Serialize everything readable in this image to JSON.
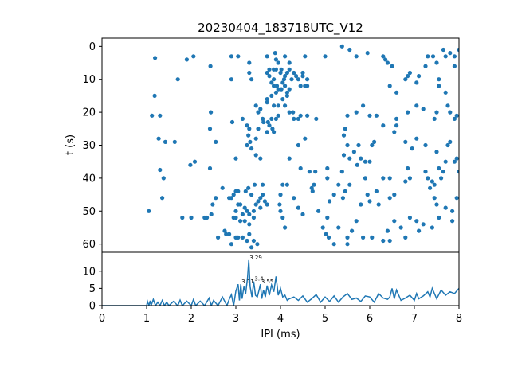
{
  "chart_data": [
    {
      "type": "scatter",
      "title": "20230404_183718UTC_V12",
      "xlabel": "",
      "ylabel": "t (s)",
      "xlim": [
        0,
        8
      ],
      "ylim": [
        62.5,
        -2.5
      ],
      "y_ticks": [
        0,
        10,
        20,
        30,
        40,
        50,
        60
      ],
      "marker_color": "#1f77b4",
      "points": [
        [
          1.19,
          3.5
        ],
        [
          1.18,
          15
        ],
        [
          1.12,
          21
        ],
        [
          1.3,
          21
        ],
        [
          1.42,
          29
        ],
        [
          1.27,
          28
        ],
        [
          1.3,
          37.5
        ],
        [
          1.38,
          40
        ],
        [
          1.35,
          46
        ],
        [
          1.05,
          50
        ],
        [
          1.63,
          29
        ],
        [
          1.7,
          10
        ],
        [
          1.9,
          4
        ],
        [
          2.05,
          3
        ],
        [
          1.98,
          36
        ],
        [
          2.08,
          35
        ],
        [
          2.43,
          6
        ],
        [
          2.44,
          20
        ],
        [
          2.42,
          25
        ],
        [
          2.55,
          29
        ],
        [
          2.42,
          37
        ],
        [
          2.9,
          10
        ],
        [
          2.9,
          3
        ],
        [
          2.55,
          46
        ],
        [
          2.48,
          48
        ],
        [
          2.45,
          51
        ],
        [
          2.35,
          52
        ],
        [
          2.3,
          52
        ],
        [
          2.0,
          52
        ],
        [
          1.8,
          52
        ],
        [
          2.7,
          43
        ],
        [
          2.6,
          58
        ],
        [
          2.75,
          56
        ],
        [
          2.78,
          57
        ],
        [
          2.85,
          57
        ],
        [
          2.9,
          60
        ],
        [
          3.0,
          58
        ],
        [
          3.05,
          58
        ],
        [
          3.15,
          58
        ],
        [
          3.25,
          59
        ],
        [
          3.3,
          57
        ],
        [
          3.4,
          59
        ],
        [
          3.48,
          60
        ],
        [
          3.35,
          61
        ],
        [
          3.3,
          54
        ],
        [
          3.2,
          53
        ],
        [
          3.1,
          53
        ],
        [
          3.0,
          52
        ],
        [
          2.95,
          52
        ],
        [
          3.0,
          50
        ],
        [
          3.05,
          48
        ],
        [
          3.1,
          48
        ],
        [
          3.2,
          49
        ],
        [
          3.25,
          50
        ],
        [
          3.3,
          51
        ],
        [
          3.4,
          52
        ],
        [
          3.45,
          48
        ],
        [
          3.5,
          47
        ],
        [
          3.55,
          46
        ],
        [
          3.6,
          45
        ],
        [
          3.65,
          47
        ],
        [
          3.7,
          48
        ],
        [
          3.55,
          49
        ],
        [
          3.4,
          50
        ],
        [
          3.15,
          51
        ],
        [
          3.05,
          44
        ],
        [
          3.0,
          44
        ],
        [
          2.95,
          45
        ],
        [
          2.9,
          46
        ],
        [
          2.85,
          46
        ],
        [
          3.35,
          45
        ],
        [
          3.42,
          42
        ],
        [
          3.6,
          42
        ],
        [
          3.28,
          43
        ],
        [
          3.22,
          44
        ],
        [
          3.0,
          34
        ],
        [
          2.92,
          23
        ],
        [
          3.15,
          22
        ],
        [
          3.25,
          24
        ],
        [
          3.3,
          25
        ],
        [
          3.28,
          27
        ],
        [
          3.32,
          29
        ],
        [
          3.25,
          30
        ],
        [
          3.35,
          31
        ],
        [
          3.45,
          33
        ],
        [
          3.55,
          34
        ],
        [
          3.45,
          28
        ],
        [
          3.5,
          25
        ],
        [
          3.45,
          18
        ],
        [
          3.5,
          20
        ],
        [
          3.55,
          19
        ],
        [
          3.6,
          22
        ],
        [
          3.62,
          23
        ],
        [
          3.72,
          23
        ],
        [
          3.8,
          22
        ],
        [
          3.82,
          25
        ],
        [
          3.7,
          26
        ],
        [
          3.75,
          24
        ],
        [
          3.85,
          26
        ],
        [
          3.9,
          22
        ],
        [
          3.95,
          21
        ],
        [
          3.85,
          18
        ],
        [
          3.7,
          17
        ],
        [
          3.95,
          18
        ],
        [
          4.05,
          16
        ],
        [
          4.15,
          15
        ],
        [
          4.1,
          18
        ],
        [
          4.2,
          20
        ],
        [
          4.3,
          22
        ],
        [
          4.28,
          20
        ],
        [
          4.4,
          22
        ],
        [
          4.45,
          21
        ],
        [
          4.6,
          21
        ],
        [
          4.8,
          22
        ],
        [
          4.6,
          12
        ],
        [
          4.45,
          12
        ],
        [
          4.5,
          8
        ],
        [
          4.3,
          8
        ],
        [
          4.2,
          7
        ],
        [
          4.15,
          8
        ],
        [
          4.1,
          9
        ],
        [
          4.08,
          10
        ],
        [
          4.0,
          8
        ],
        [
          4.02,
          7
        ],
        [
          4.05,
          11
        ],
        [
          3.92,
          12
        ],
        [
          3.85,
          12
        ],
        [
          3.85,
          10
        ],
        [
          3.8,
          11
        ],
        [
          3.75,
          9
        ],
        [
          3.7,
          8
        ],
        [
          3.75,
          7
        ],
        [
          3.85,
          7
        ],
        [
          3.9,
          7
        ],
        [
          3.95,
          5
        ],
        [
          3.9,
          4
        ],
        [
          4.1,
          3
        ],
        [
          4.2,
          5
        ],
        [
          4.35,
          9
        ],
        [
          4.25,
          10
        ],
        [
          4.4,
          10
        ],
        [
          4.5,
          9
        ],
        [
          4.55,
          12
        ],
        [
          4.6,
          10
        ],
        [
          4.2,
          13
        ],
        [
          4.15,
          14
        ],
        [
          4.1,
          12
        ],
        [
          4.02,
          13
        ],
        [
          3.95,
          13
        ],
        [
          3.9,
          14
        ],
        [
          3.8,
          15
        ],
        [
          3.7,
          16
        ],
        [
          3.3,
          8
        ],
        [
          3.35,
          10
        ],
        [
          3.3,
          5
        ],
        [
          3.05,
          3
        ],
        [
          3.7,
          3
        ],
        [
          3.88,
          2
        ],
        [
          4.55,
          3
        ],
        [
          5.0,
          3
        ],
        [
          5.38,
          0
        ],
        [
          5.55,
          1
        ],
        [
          5.7,
          3
        ],
        [
          5.95,
          2
        ],
        [
          6.3,
          3
        ],
        [
          6.35,
          4
        ],
        [
          6.4,
          5
        ],
        [
          6.5,
          6
        ],
        [
          6.45,
          12
        ],
        [
          6.6,
          14
        ],
        [
          6.8,
          10
        ],
        [
          6.85,
          9
        ],
        [
          6.9,
          8
        ],
        [
          7.05,
          11
        ],
        [
          7.1,
          9
        ],
        [
          7.25,
          6
        ],
        [
          7.3,
          3
        ],
        [
          7.42,
          3
        ],
        [
          7.5,
          5
        ],
        [
          7.7,
          3
        ],
        [
          7.65,
          1
        ],
        [
          7.8,
          2
        ],
        [
          7.9,
          3
        ],
        [
          7.9,
          6
        ],
        [
          8.0,
          1
        ],
        [
          7.55,
          10
        ],
        [
          7.55,
          12
        ],
        [
          7.7,
          14
        ],
        [
          7.75,
          18
        ],
        [
          7.8,
          20
        ],
        [
          7.9,
          22
        ],
        [
          7.95,
          21
        ],
        [
          7.5,
          20
        ],
        [
          7.45,
          22
        ],
        [
          7.2,
          19
        ],
        [
          7.05,
          18
        ],
        [
          6.85,
          20
        ],
        [
          6.6,
          22
        ],
        [
          6.15,
          21
        ],
        [
          6.0,
          21
        ],
        [
          5.85,
          18
        ],
        [
          5.7,
          20
        ],
        [
          5.5,
          21
        ],
        [
          5.45,
          25
        ],
        [
          5.42,
          27
        ],
        [
          5.5,
          30
        ],
        [
          5.65,
          32
        ],
        [
          5.8,
          34
        ],
        [
          5.72,
          36
        ],
        [
          5.9,
          35
        ],
        [
          6.05,
          30
        ],
        [
          6.1,
          29
        ],
        [
          6.3,
          24
        ],
        [
          6.6,
          24
        ],
        [
          6.55,
          26
        ],
        [
          6.8,
          29
        ],
        [
          6.95,
          31
        ],
        [
          7.05,
          28
        ],
        [
          7.25,
          30
        ],
        [
          7.5,
          32
        ],
        [
          7.8,
          29
        ],
        [
          7.75,
          30
        ],
        [
          7.9,
          35
        ],
        [
          8.0,
          38
        ],
        [
          7.95,
          34
        ],
        [
          7.7,
          35
        ],
        [
          7.65,
          38
        ],
        [
          7.55,
          37
        ],
        [
          7.6,
          40
        ],
        [
          7.45,
          42
        ],
        [
          7.35,
          43
        ],
        [
          7.45,
          46
        ],
        [
          7.5,
          48
        ],
        [
          7.7,
          49
        ],
        [
          7.85,
          50
        ],
        [
          7.95,
          46
        ],
        [
          7.85,
          53
        ],
        [
          7.55,
          52
        ],
        [
          7.4,
          55
        ],
        [
          7.2,
          54
        ],
        [
          7.1,
          56
        ],
        [
          7.05,
          53
        ],
        [
          6.9,
          52
        ],
        [
          6.8,
          58
        ],
        [
          6.7,
          55
        ],
        [
          6.55,
          53
        ],
        [
          6.45,
          59
        ],
        [
          6.3,
          59
        ],
        [
          6.4,
          56
        ],
        [
          6.45,
          46
        ],
        [
          6.55,
          45
        ],
        [
          6.2,
          48
        ],
        [
          6.15,
          44
        ],
        [
          6.0,
          47
        ],
        [
          5.95,
          45
        ],
        [
          5.8,
          48
        ],
        [
          5.7,
          53
        ],
        [
          5.6,
          56
        ],
        [
          5.85,
          58
        ],
        [
          6.05,
          58
        ],
        [
          6.3,
          40
        ],
        [
          6.45,
          40
        ],
        [
          6.8,
          41
        ],
        [
          6.9,
          40
        ],
        [
          6.85,
          37
        ],
        [
          7.25,
          38
        ],
        [
          7.3,
          40
        ],
        [
          7.4,
          41
        ],
        [
          5.9,
          40
        ],
        [
          5.55,
          42
        ],
        [
          5.45,
          44
        ],
        [
          5.4,
          46
        ],
        [
          5.3,
          42
        ],
        [
          5.2,
          45
        ],
        [
          5.1,
          47
        ],
        [
          5.05,
          52
        ],
        [
          5.3,
          55
        ],
        [
          5.5,
          58
        ],
        [
          5.5,
          60
        ],
        [
          5.2,
          60
        ],
        [
          5.08,
          58
        ],
        [
          5.02,
          57
        ],
        [
          4.95,
          55
        ],
        [
          4.85,
          50
        ],
        [
          4.7,
          43
        ],
        [
          4.72,
          44
        ],
        [
          4.4,
          49
        ],
        [
          4.5,
          51
        ],
        [
          4.3,
          46
        ],
        [
          4.15,
          42
        ],
        [
          4.05,
          42
        ],
        [
          4.0,
          45
        ],
        [
          3.98,
          48
        ],
        [
          4.0,
          50
        ],
        [
          4.05,
          52
        ],
        [
          4.1,
          55
        ],
        [
          4.45,
          37
        ],
        [
          4.65,
          38
        ],
        [
          4.4,
          30
        ],
        [
          4.55,
          28
        ],
        [
          4.2,
          34
        ],
        [
          4.75,
          42
        ],
        [
          4.78,
          38
        ],
        [
          5.05,
          37
        ],
        [
          5.05,
          40
        ],
        [
          5.42,
          33
        ],
        [
          5.55,
          34
        ],
        [
          5.75,
          30
        ],
        [
          5.38,
          38
        ],
        [
          6.0,
          35
        ]
      ]
    },
    {
      "type": "line",
      "title": "",
      "xlabel": "IPI (ms)",
      "ylabel": "",
      "xlim": [
        0,
        8
      ],
      "ylim": [
        0,
        15.5
      ],
      "x_ticks": [
        0,
        1,
        2,
        3,
        4,
        5,
        6,
        7,
        8
      ],
      "y_ticks": [
        0,
        5,
        10
      ],
      "line_color": "#1f77b4",
      "peaks": [
        {
          "x": 3.29,
          "y": 13.2,
          "label": "3.29"
        },
        {
          "x": 3.11,
          "y": 6.2,
          "label": "3.11"
        },
        {
          "x": 3.4,
          "y": 7.0,
          "label": "3.4"
        },
        {
          "x": 3.55,
          "y": 6.2,
          "label": "3.55"
        }
      ],
      "x": [
        0,
        1.0,
        1.02,
        1.05,
        1.08,
        1.1,
        1.15,
        1.2,
        1.25,
        1.3,
        1.35,
        1.4,
        1.45,
        1.5,
        1.6,
        1.7,
        1.75,
        1.8,
        1.9,
        2.0,
        2.05,
        2.1,
        2.2,
        2.3,
        2.4,
        2.45,
        2.5,
        2.6,
        2.7,
        2.8,
        2.85,
        2.9,
        2.95,
        3.0,
        3.05,
        3.08,
        3.11,
        3.14,
        3.18,
        3.22,
        3.26,
        3.29,
        3.32,
        3.36,
        3.4,
        3.44,
        3.48,
        3.52,
        3.55,
        3.58,
        3.62,
        3.66,
        3.7,
        3.75,
        3.8,
        3.85,
        3.9,
        3.95,
        4.0,
        4.05,
        4.1,
        4.15,
        4.2,
        4.3,
        4.4,
        4.5,
        4.6,
        4.7,
        4.8,
        4.9,
        5.0,
        5.1,
        5.2,
        5.3,
        5.4,
        5.5,
        5.6,
        5.7,
        5.8,
        5.9,
        6.0,
        6.1,
        6.2,
        6.3,
        6.4,
        6.45,
        6.5,
        6.55,
        6.6,
        6.7,
        6.8,
        6.9,
        7.0,
        7.05,
        7.1,
        7.2,
        7.3,
        7.35,
        7.4,
        7.5,
        7.6,
        7.7,
        7.8,
        7.9,
        8.0
      ],
      "y": [
        0,
        0,
        1.2,
        0,
        1.4,
        0,
        1.8,
        0,
        1.0,
        0,
        1.5,
        0,
        1.0,
        0,
        1.2,
        0,
        1.6,
        0,
        1.3,
        0,
        1.8,
        0,
        1.3,
        0,
        2.2,
        0,
        1.5,
        0,
        2.5,
        0,
        1.8,
        3.2,
        0,
        4.2,
        6.2,
        1.5,
        6.2,
        2.0,
        5.5,
        3.5,
        8.0,
        13.2,
        5.5,
        2.5,
        7.0,
        3.0,
        2.5,
        4.5,
        6.2,
        2.0,
        4.5,
        2.5,
        5.8,
        3.0,
        6.0,
        4.0,
        8.5,
        3.0,
        5.0,
        2.5,
        3.0,
        1.5,
        2.0,
        2.5,
        1.5,
        2.8,
        1.0,
        2.0,
        3.2,
        1.0,
        2.5,
        1.2,
        2.8,
        1.0,
        2.5,
        3.5,
        1.8,
        2.2,
        1.2,
        2.8,
        2.5,
        1.0,
        3.5,
        2.2,
        1.8,
        2.5,
        5.0,
        2.0,
        4.5,
        1.5,
        2.2,
        3.0,
        1.5,
        3.5,
        2.0,
        2.8,
        4.0,
        2.5,
        5.0,
        2.0,
        4.5,
        3.0,
        4.0,
        3.5,
        5.0
      ]
    }
  ]
}
